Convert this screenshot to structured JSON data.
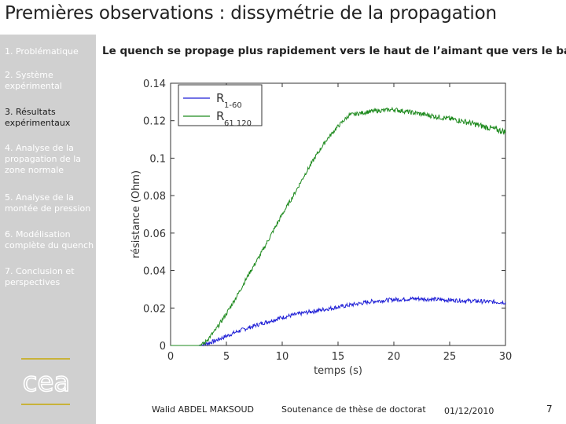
{
  "header": {
    "title": "Premières observations : dissymétrie de la propagation"
  },
  "sidebar": {
    "items": [
      {
        "label": "1. Problématique",
        "active": false
      },
      {
        "label": "2. Système expérimental",
        "active": false
      },
      {
        "label": "3. Résultats expérimentaux",
        "active": true
      },
      {
        "label": "4. Analyse de la propagation de la zone normale",
        "active": false
      },
      {
        "label": "5. Analyse de la montée de pression",
        "active": false
      },
      {
        "label": "6. Modélisation complète du quench",
        "active": false
      },
      {
        "label": "7. Conclusion et perspectives",
        "active": false
      }
    ],
    "logo_text": "cea"
  },
  "main": {
    "subtitle": "Le quench se propage plus rapidement vers le haut de l’aimant que vers le bas"
  },
  "chart_data": {
    "type": "line",
    "xlabel": "temps (s)",
    "ylabel": "résistance (Ohm)",
    "xlim": [
      0,
      30
    ],
    "ylim": [
      0,
      0.14
    ],
    "x_ticks": [
      "0",
      "5",
      "10",
      "15",
      "20",
      "25",
      "30"
    ],
    "y_ticks": [
      "0",
      "0.02",
      "0.04",
      "0.06",
      "0.08",
      "0.1",
      "0.12",
      "0.14"
    ],
    "legend_position": "top-left",
    "grid": false,
    "series": [
      {
        "name": "R1-60",
        "legend_main": "R",
        "legend_sub": "1-60",
        "color": "#1f1fd6",
        "x": [
          0,
          2.5,
          3.0,
          4.0,
          5.0,
          6.0,
          8.0,
          10.0,
          12.0,
          14.0,
          16.0,
          18.0,
          20.0,
          22.0,
          24.0,
          26.0,
          28.0,
          30.0
        ],
        "y": [
          0,
          0,
          0.0005,
          0.0025,
          0.005,
          0.0075,
          0.0115,
          0.015,
          0.0175,
          0.0195,
          0.0215,
          0.0235,
          0.0245,
          0.025,
          0.0245,
          0.024,
          0.0235,
          0.023
        ]
      },
      {
        "name": "R61-120",
        "legend_main": "R",
        "legend_sub": "61 120",
        "color": "#1e8a1e",
        "x": [
          0,
          2.5,
          3.0,
          4.0,
          5.0,
          6.0,
          7.0,
          8.0,
          9.0,
          10.0,
          11.0,
          12.0,
          13.0,
          14.0,
          15.0,
          16.0,
          18.0,
          20.0,
          22.0,
          24.0,
          26.0,
          28.0,
          30.0
        ],
        "y": [
          0,
          0,
          0.001,
          0.008,
          0.017,
          0.027,
          0.038,
          0.048,
          0.059,
          0.07,
          0.08,
          0.091,
          0.101,
          0.11,
          0.117,
          0.123,
          0.125,
          0.126,
          0.124,
          0.122,
          0.12,
          0.117,
          0.114
        ]
      }
    ]
  },
  "footer": {
    "author": "Walid ABDEL MAKSOUD",
    "event": "Soutenance de thèse de doctorat",
    "date": "01/12/2010",
    "page": "7"
  }
}
